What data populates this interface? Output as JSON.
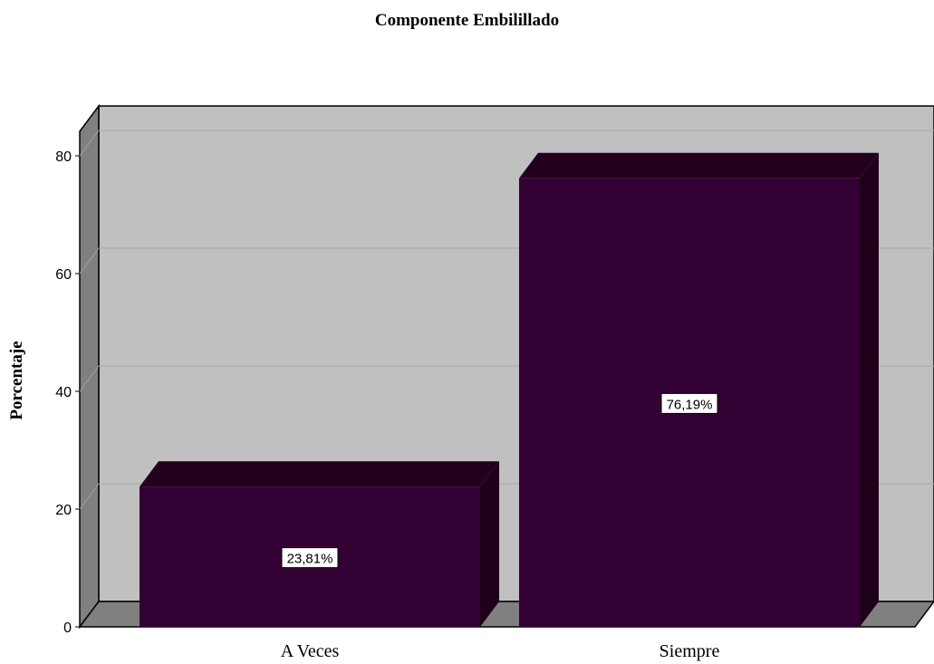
{
  "chart_data": {
    "type": "bar",
    "title": "Componente Embilillado",
    "xlabel": "",
    "ylabel": "Porcentaje",
    "categories": [
      "A Veces",
      "Siempre"
    ],
    "values": [
      23.81,
      76.19
    ],
    "data_labels": [
      "23,81%",
      "76,19%"
    ],
    "ylim": [
      0,
      80
    ],
    "yticks": [
      "0",
      "20",
      "40",
      "60",
      "80"
    ],
    "grid": true,
    "style": "3d",
    "colors": {
      "bar": "#330033",
      "bar_top": "#24001f",
      "bar_side": "#1f001a",
      "plot_bg": "#c0c0c0",
      "wall": "#808080",
      "floor": "#808080"
    }
  }
}
